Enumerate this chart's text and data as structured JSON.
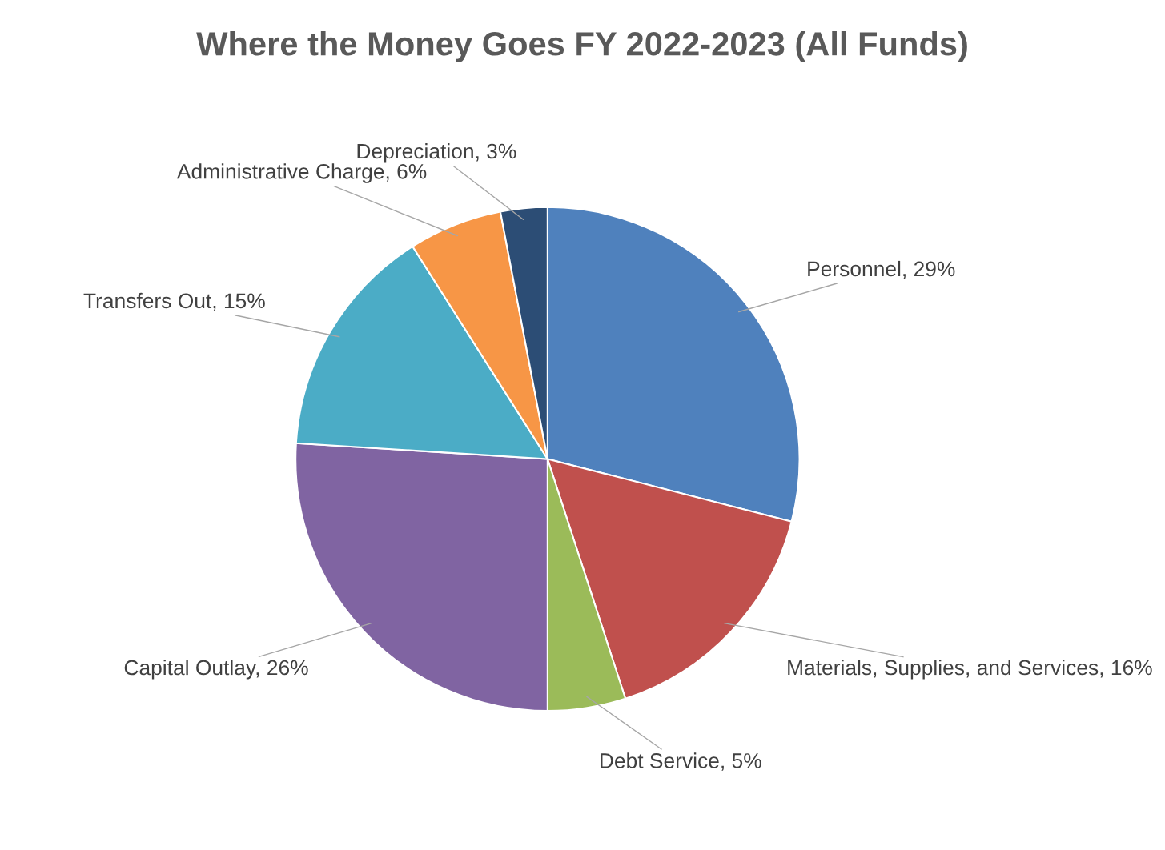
{
  "chart_data": {
    "type": "pie",
    "title": "Where the Money Goes FY 2022-2023 (All Funds)",
    "categories": [
      "Personnel",
      "Materials, Supplies, and Services",
      "Debt Service",
      "Capital Outlay",
      "Transfers Out",
      "Administrative Charge",
      "Depreciation"
    ],
    "values": [
      29,
      16,
      5,
      26,
      15,
      6,
      3
    ],
    "value_labels": [
      "29%",
      "16%",
      "5%",
      "26%",
      "15%",
      "6%",
      "3%"
    ],
    "colors": [
      "#4f81bd",
      "#c0504d",
      "#9bbb59",
      "#8064a2",
      "#4bacc6",
      "#f79646",
      "#2c4d75"
    ],
    "legend": false
  }
}
